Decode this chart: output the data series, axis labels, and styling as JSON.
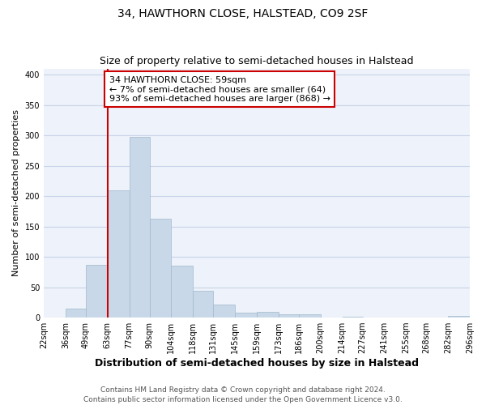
{
  "title": "34, HAWTHORN CLOSE, HALSTEAD, CO9 2SF",
  "subtitle": "Size of property relative to semi-detached houses in Halstead",
  "xlabel": "Distribution of semi-detached houses by size in Halstead",
  "ylabel": "Number of semi-detached properties",
  "property_label": "34 HAWTHORN CLOSE: 59sqm",
  "pct_smaller": 7,
  "pct_larger": 93,
  "count_smaller": 64,
  "count_larger": 868,
  "bin_edges": [
    22,
    36,
    49,
    63,
    77,
    90,
    104,
    118,
    131,
    145,
    159,
    173,
    186,
    200,
    214,
    227,
    241,
    255,
    268,
    282,
    296
  ],
  "bin_labels": [
    "22sqm",
    "36sqm",
    "49sqm",
    "63sqm",
    "77sqm",
    "90sqm",
    "104sqm",
    "118sqm",
    "131sqm",
    "145sqm",
    "159sqm",
    "173sqm",
    "186sqm",
    "200sqm",
    "214sqm",
    "227sqm",
    "241sqm",
    "255sqm",
    "268sqm",
    "282sqm",
    "296sqm"
  ],
  "bar_heights": [
    0,
    15,
    87,
    210,
    297,
    163,
    85,
    44,
    21,
    8,
    9,
    5,
    5,
    0,
    1,
    0,
    0,
    0,
    0,
    3
  ],
  "bar_color": "#c8d8e8",
  "bar_edge_color": "#a0b8cc",
  "vline_color": "#cc0000",
  "vline_x": 63,
  "ylim": [
    0,
    410
  ],
  "yticks": [
    0,
    50,
    100,
    150,
    200,
    250,
    300,
    350,
    400
  ],
  "grid_color": "#c8d4e8",
  "background_color": "#eef2fa",
  "annotation_box_edge_color": "#cc0000",
  "footer": "Contains HM Land Registry data © Crown copyright and database right 2024.\nContains public sector information licensed under the Open Government Licence v3.0.",
  "title_fontsize": 10,
  "subtitle_fontsize": 9,
  "xlabel_fontsize": 9,
  "ylabel_fontsize": 8,
  "tick_fontsize": 7,
  "annotation_fontsize": 8,
  "footer_fontsize": 6.5
}
